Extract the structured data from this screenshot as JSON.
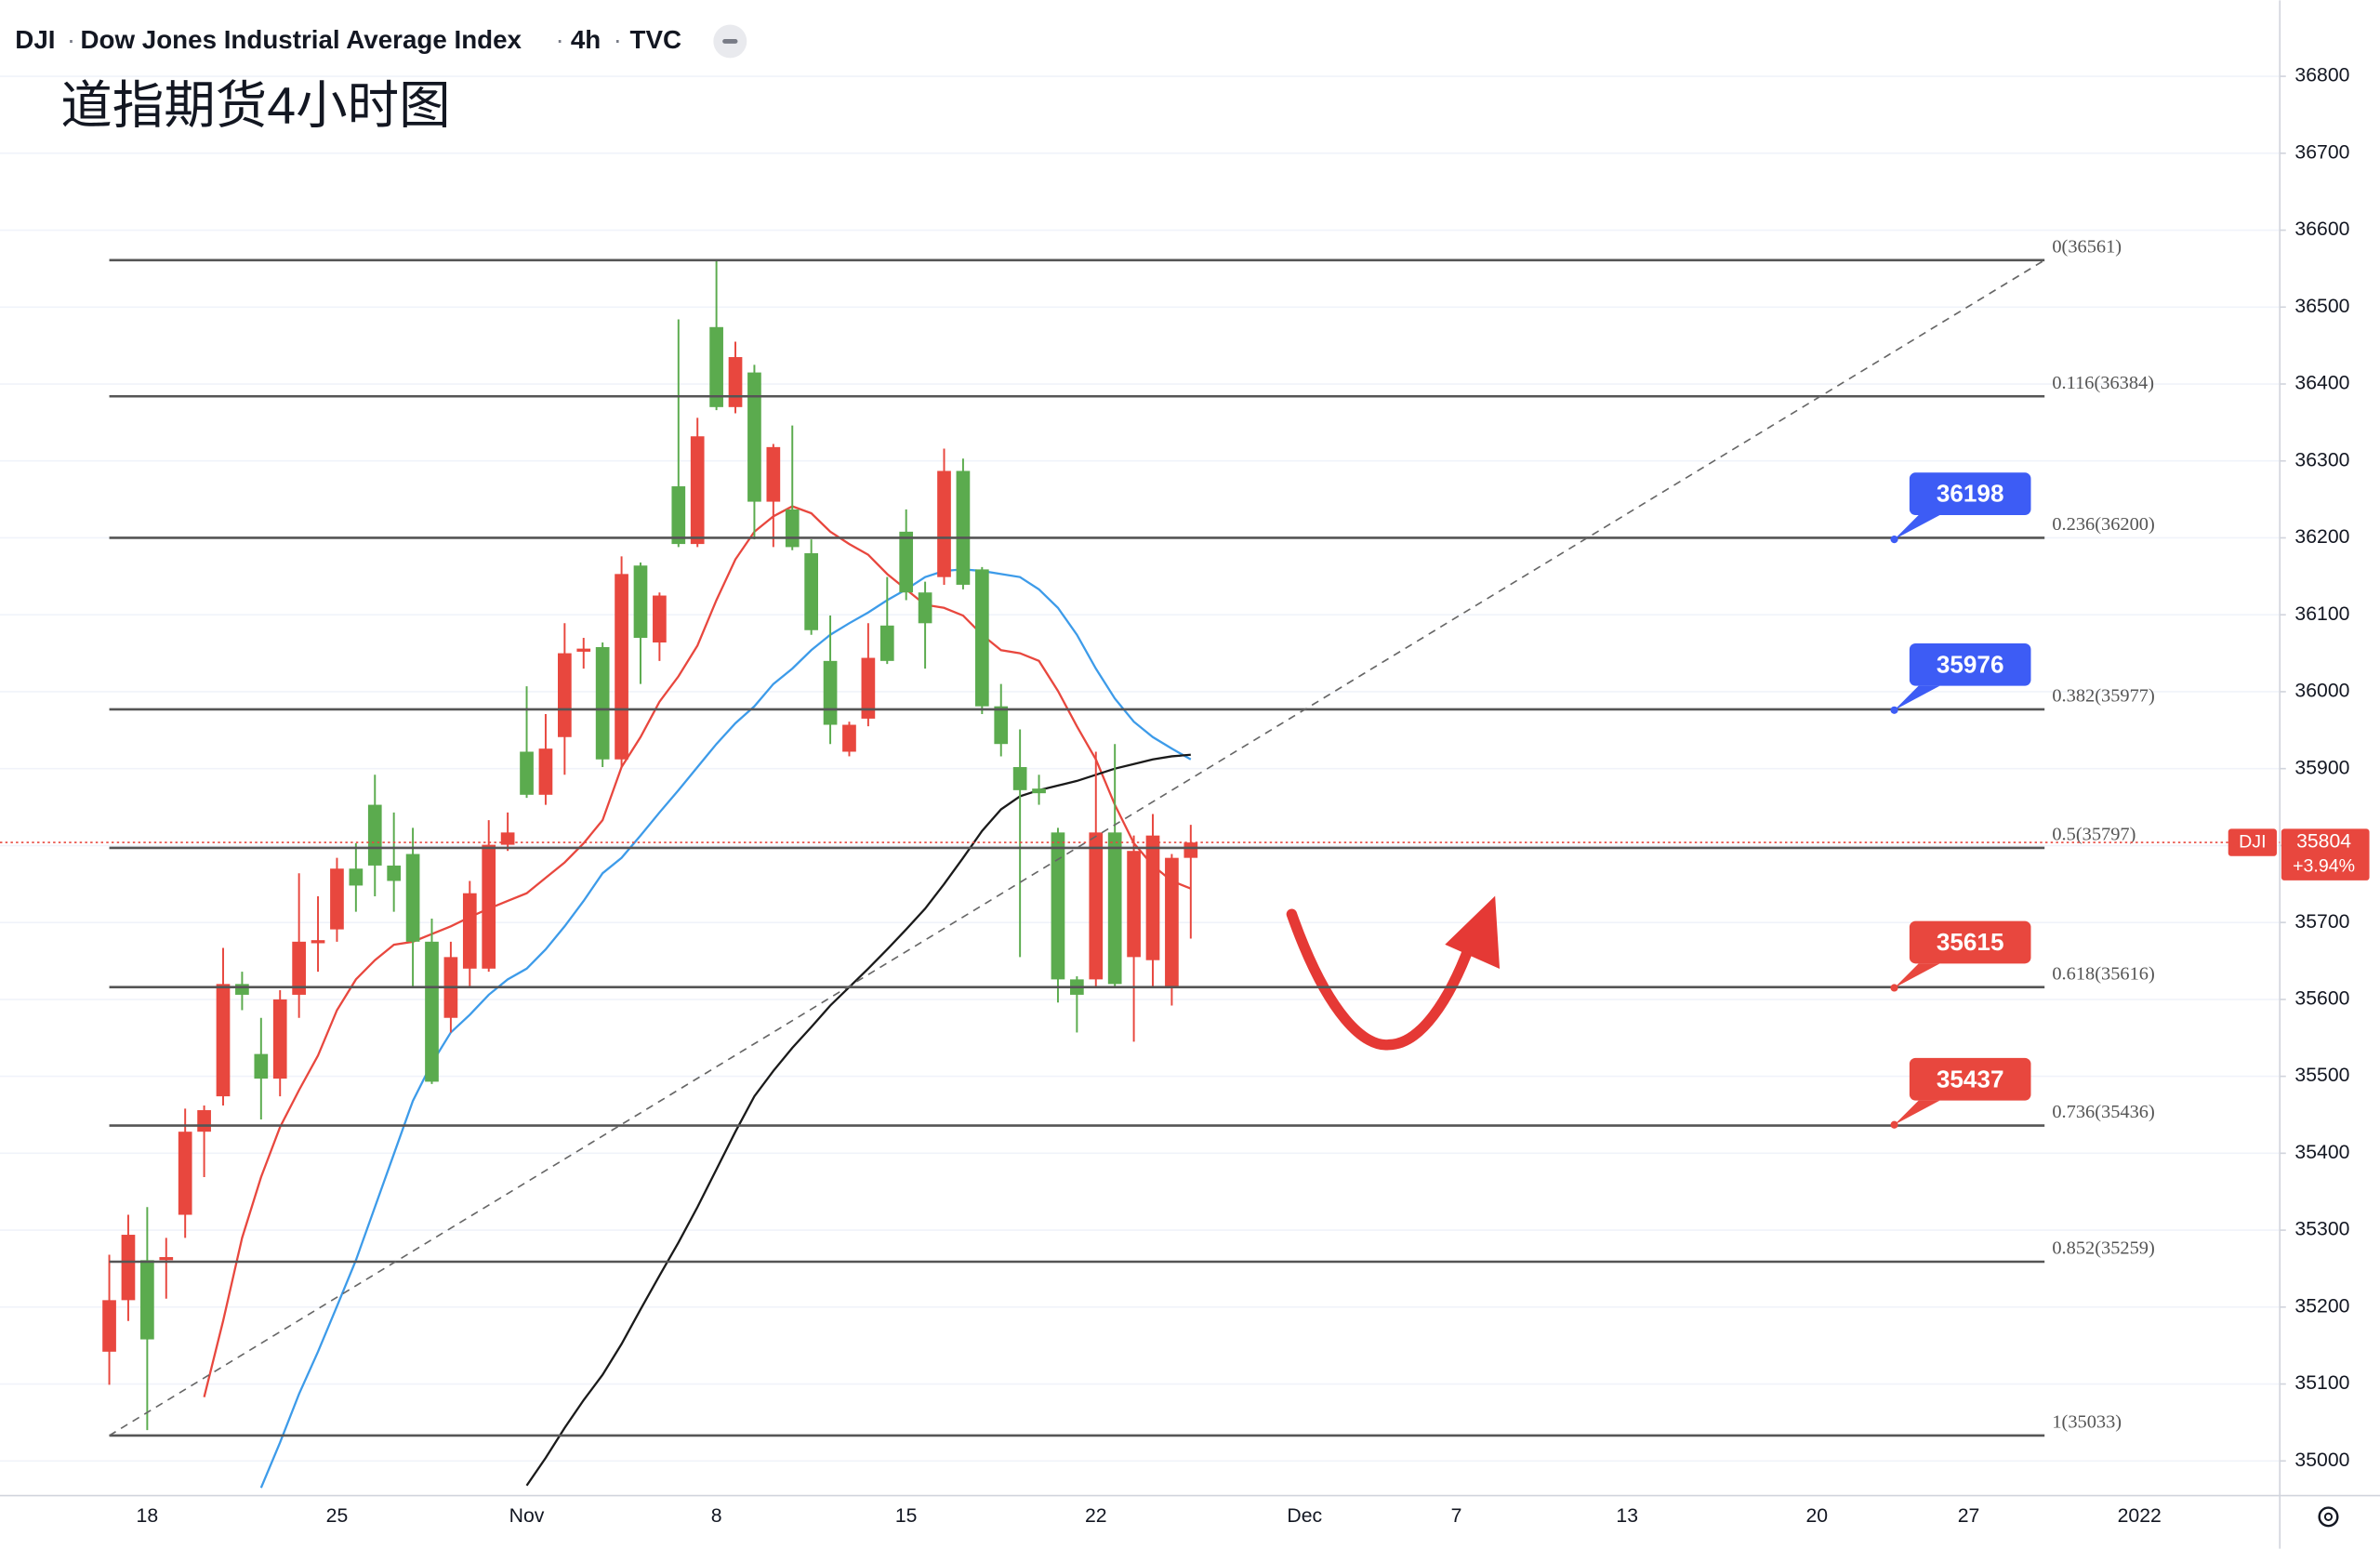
{
  "header": {
    "symbol": "DJI",
    "name": "Dow Jones Industrial Average Index",
    "interval": "4h",
    "source": "TVC"
  },
  "chart_data": {
    "type": "candlestick",
    "annotation": "道指期货4小时图",
    "categories": [
      null,
      null,
      "18",
      null,
      null,
      null,
      null,
      null,
      null,
      null,
      null,
      null,
      "25",
      null,
      null,
      null,
      null,
      null,
      null,
      null,
      null,
      null,
      "Nov",
      null,
      null,
      null,
      null,
      null,
      null,
      null,
      null,
      null,
      "8",
      null,
      null,
      null,
      null,
      null,
      null,
      null,
      null,
      null,
      "15",
      null,
      null,
      null,
      null,
      null,
      null,
      null,
      null,
      null,
      "22",
      null,
      null,
      null,
      null,
      null,
      null,
      null,
      null,
      null,
      null,
      "Dec",
      null,
      null,
      null,
      null,
      null,
      null,
      null,
      "7",
      null,
      null,
      null,
      null,
      null,
      null,
      null,
      null,
      "13",
      null,
      null,
      null,
      null,
      null,
      null,
      null,
      null,
      null,
      "20",
      null,
      null,
      null,
      null,
      null,
      null,
      null,
      "27",
      null,
      null,
      null,
      null,
      null,
      null,
      null,
      null,
      "2022"
    ],
    "open": [
      35142,
      35209,
      35261,
      35261,
      35320,
      35428,
      35474,
      35620,
      35529,
      35497,
      35606,
      35673,
      35691,
      35770,
      35853,
      35774,
      35789,
      35675,
      35576,
      35640,
      35640,
      35801,
      35922,
      35866,
      35941,
      36052,
      36058,
      35912,
      36164,
      36064,
      36267,
      36192,
      36474,
      36370,
      36415,
      36247,
      36237,
      36180,
      36040,
      35922,
      35965,
      36086,
      36208,
      36129,
      36149,
      36287,
      36159,
      35981,
      35902,
      35874,
      35817,
      35626,
      35626,
      35817,
      35655,
      35651,
      35616,
      35784,
      null,
      null,
      null,
      null,
      null,
      null,
      null,
      null,
      null,
      null,
      null,
      null,
      null,
      null,
      null,
      null,
      null,
      null,
      null,
      null,
      null,
      null,
      null,
      null,
      null,
      null,
      null,
      null,
      null,
      null,
      null,
      null,
      null,
      null,
      null,
      null,
      null,
      null,
      null,
      null,
      null,
      null,
      null,
      null,
      null,
      null,
      null,
      null,
      null,
      null
    ],
    "high": [
      35268,
      35320,
      35330,
      35290,
      35458,
      35462,
      35667,
      35636,
      35576,
      35612,
      35764,
      35734,
      35784,
      35803,
      35892,
      35843,
      35823,
      35705,
      35675,
      35754,
      35833,
      35843,
      36007,
      35971,
      36089,
      36070,
      36064,
      36176,
      36168,
      36129,
      36484,
      36356,
      36561,
      36455,
      36425,
      36322,
      36346,
      36198,
      36099,
      35961,
      36089,
      36149,
      36237,
      36143,
      36316,
      36303,
      36162,
      36010,
      35951,
      35892,
      35823,
      35630,
      35922,
      35932,
      35813,
      35841,
      35789,
      35827,
      null,
      null,
      null,
      null,
      null,
      null,
      null,
      null,
      null,
      null,
      null,
      null,
      null,
      null,
      null,
      null,
      null,
      null,
      null,
      null,
      null,
      null,
      null,
      null,
      null,
      null,
      null,
      null,
      null,
      null,
      null,
      null,
      null,
      null,
      null,
      null,
      null,
      null,
      null,
      null,
      null,
      null,
      null,
      null,
      null,
      null,
      null,
      null,
      null,
      null
    ],
    "low": [
      35099,
      35182,
      35040,
      35211,
      35290,
      35369,
      35462,
      35586,
      35444,
      35474,
      35576,
      35636,
      35675,
      35714,
      35734,
      35714,
      35616,
      35490,
      35557,
      35616,
      35636,
      35793,
      35862,
      35853,
      35892,
      36030,
      35902,
      35902,
      36010,
      36040,
      36188,
      36188,
      36366,
      36362,
      36198,
      36188,
      36184,
      36074,
      35932,
      35916,
      35955,
      36036,
      36119,
      36030,
      36139,
      36133,
      35971,
      35916,
      35655,
      35853,
      35596,
      35557,
      35616,
      35616,
      35545,
      35616,
      35592,
      35679,
      null,
      null,
      null,
      null,
      null,
      null,
      null,
      null,
      null,
      null,
      null,
      null,
      null,
      null,
      null,
      null,
      null,
      null,
      null,
      null,
      null,
      null,
      null,
      null,
      null,
      null,
      null,
      null,
      null,
      null,
      null,
      null,
      null,
      null,
      null,
      null,
      null,
      null,
      null,
      null,
      null,
      null,
      null,
      null,
      null,
      null,
      null,
      null,
      null,
      null
    ],
    "close": [
      35209,
      35294,
      35158,
      35265,
      35428,
      35456,
      35620,
      35606,
      35497,
      35600,
      35675,
      35677,
      35770,
      35748,
      35774,
      35754,
      35675,
      35493,
      35655,
      35738,
      35801,
      35817,
      35866,
      35926,
      36050,
      36056,
      35912,
      36153,
      36070,
      36125,
      36192,
      36332,
      36370,
      36435,
      36247,
      36318,
      36188,
      36080,
      35957,
      35957,
      36044,
      36040,
      36129,
      36089,
      36287,
      36139,
      35981,
      35932,
      35872,
      35868,
      35626,
      35606,
      35817,
      35620,
      35793,
      35813,
      35784,
      35804,
      null,
      null,
      null,
      null,
      null,
      null,
      null,
      null,
      null,
      null,
      null,
      null,
      null,
      null,
      null,
      null,
      null,
      null,
      null,
      null,
      null,
      null,
      null,
      null,
      null,
      null,
      null,
      null,
      null,
      null,
      null,
      null,
      null,
      null,
      null,
      null,
      null,
      null,
      null,
      null,
      null,
      null,
      null,
      null,
      null,
      null,
      null,
      null,
      null,
      null
    ],
    "up_color": "#e8473e",
    "down_color": "#5bab4e",
    "overlays": [
      {
        "color": "#e8473e",
        "values": [
          null,
          null,
          null,
          null,
          null,
          35083,
          35182,
          35290,
          35369,
          35434,
          35482,
          35527,
          35586,
          35626,
          35651,
          35671,
          35675,
          35685,
          35695,
          35707,
          35718,
          35728,
          35738,
          35758,
          35778,
          35803,
          35833,
          35902,
          35941,
          35987,
          36020,
          36060,
          36119,
          36172,
          36208,
          36228,
          36241,
          36232,
          36208,
          36192,
          36178,
          36153,
          36133,
          36113,
          36109,
          36099,
          36074,
          36054,
          36050,
          36040,
          36001,
          35955,
          35912,
          35853,
          35803,
          35774,
          35754,
          35744,
          null,
          null,
          null,
          null,
          null,
          null,
          null,
          null,
          null,
          null,
          null,
          null,
          null,
          null,
          null,
          null,
          null,
          null,
          null,
          null,
          null,
          null,
          null,
          null,
          null,
          null,
          null,
          null,
          null,
          null,
          null,
          null,
          null,
          null,
          null,
          null,
          null,
          null,
          null,
          null,
          null,
          null,
          null,
          null,
          null,
          null,
          null,
          null,
          null,
          null
        ]
      },
      {
        "color": "#3d9be9",
        "values": [
          null,
          null,
          null,
          null,
          null,
          null,
          null,
          null,
          34965,
          35024,
          35087,
          35142,
          35201,
          35261,
          35330,
          35399,
          35468,
          35517,
          35557,
          35580,
          35606,
          35626,
          35640,
          35665,
          35695,
          35728,
          35764,
          35784,
          35813,
          35843,
          35872,
          35902,
          35932,
          35959,
          35981,
          36010,
          36030,
          36054,
          36074,
          36089,
          36103,
          36119,
          36133,
          36149,
          36157,
          36159,
          36157,
          36153,
          36149,
          36133,
          36109,
          36074,
          36030,
          35991,
          35961,
          35941,
          35926,
          35912,
          null,
          null,
          null,
          null,
          null,
          null,
          null,
          null,
          null,
          null,
          null,
          null,
          null,
          null,
          null,
          null,
          null,
          null,
          null,
          null,
          null,
          null,
          null,
          null,
          null,
          null,
          null,
          null,
          null,
          null,
          null,
          null,
          null,
          null,
          null,
          null,
          null,
          null,
          null,
          null,
          null,
          null,
          null,
          null,
          null,
          null,
          null,
          null,
          null,
          null
        ]
      },
      {
        "color": "#1a1a1a",
        "values": [
          null,
          null,
          null,
          null,
          null,
          null,
          null,
          null,
          null,
          null,
          null,
          null,
          null,
          null,
          null,
          null,
          null,
          null,
          null,
          null,
          null,
          null,
          34968,
          35004,
          35043,
          35079,
          35112,
          35152,
          35197,
          35241,
          35284,
          35330,
          35379,
          35428,
          35474,
          35507,
          35537,
          35564,
          35592,
          35616,
          35640,
          35665,
          35691,
          35718,
          35750,
          35784,
          35819,
          35847,
          35864,
          35872,
          35878,
          35884,
          35892,
          35900,
          35906,
          35912,
          35916,
          35918,
          null,
          null,
          null,
          null,
          null,
          null,
          null,
          null,
          null,
          null,
          null,
          null,
          null,
          null,
          null,
          null,
          null,
          null,
          null,
          null,
          null,
          null,
          null,
          null,
          null,
          null,
          null,
          null,
          null,
          null,
          null,
          null,
          null,
          null,
          null,
          null,
          null,
          null,
          null,
          null,
          null,
          null,
          null,
          null,
          null,
          null,
          null,
          null,
          null,
          null
        ]
      }
    ],
    "fib_levels": [
      {
        "value": 36561,
        "label": "0(36561)"
      },
      {
        "value": 36384,
        "label": "0.116(36384)"
      },
      {
        "value": 36200,
        "label": "0.236(36200)"
      },
      {
        "value": 35977,
        "label": "0.382(35977)"
      },
      {
        "value": 35797,
        "label": "0.5(35797)"
      },
      {
        "value": 35616,
        "label": "0.618(35616)"
      },
      {
        "value": 35436,
        "label": "0.736(35436)"
      },
      {
        "value": 35259,
        "label": "0.852(35259)"
      },
      {
        "value": 35033,
        "label": "1(35033)"
      }
    ],
    "callouts": [
      {
        "value": 36198,
        "color": "#3d5cf5"
      },
      {
        "value": 35976,
        "color": "#3d5cf5"
      },
      {
        "value": 35615,
        "color": "#e8473e"
      },
      {
        "value": 35437,
        "color": "#e8473e"
      }
    ],
    "last_price": {
      "symbol": "DJI",
      "value": 35804,
      "change": "+3.94%",
      "color": "#e8473e"
    },
    "ylim": [
      34955,
      36883
    ],
    "yticks": [
      35000,
      35100,
      35200,
      35300,
      35400,
      35500,
      35600,
      35700,
      35800,
      35900,
      36000,
      36100,
      36200,
      36300,
      36400,
      36500,
      36600,
      36700,
      36800
    ],
    "grid": true
  }
}
